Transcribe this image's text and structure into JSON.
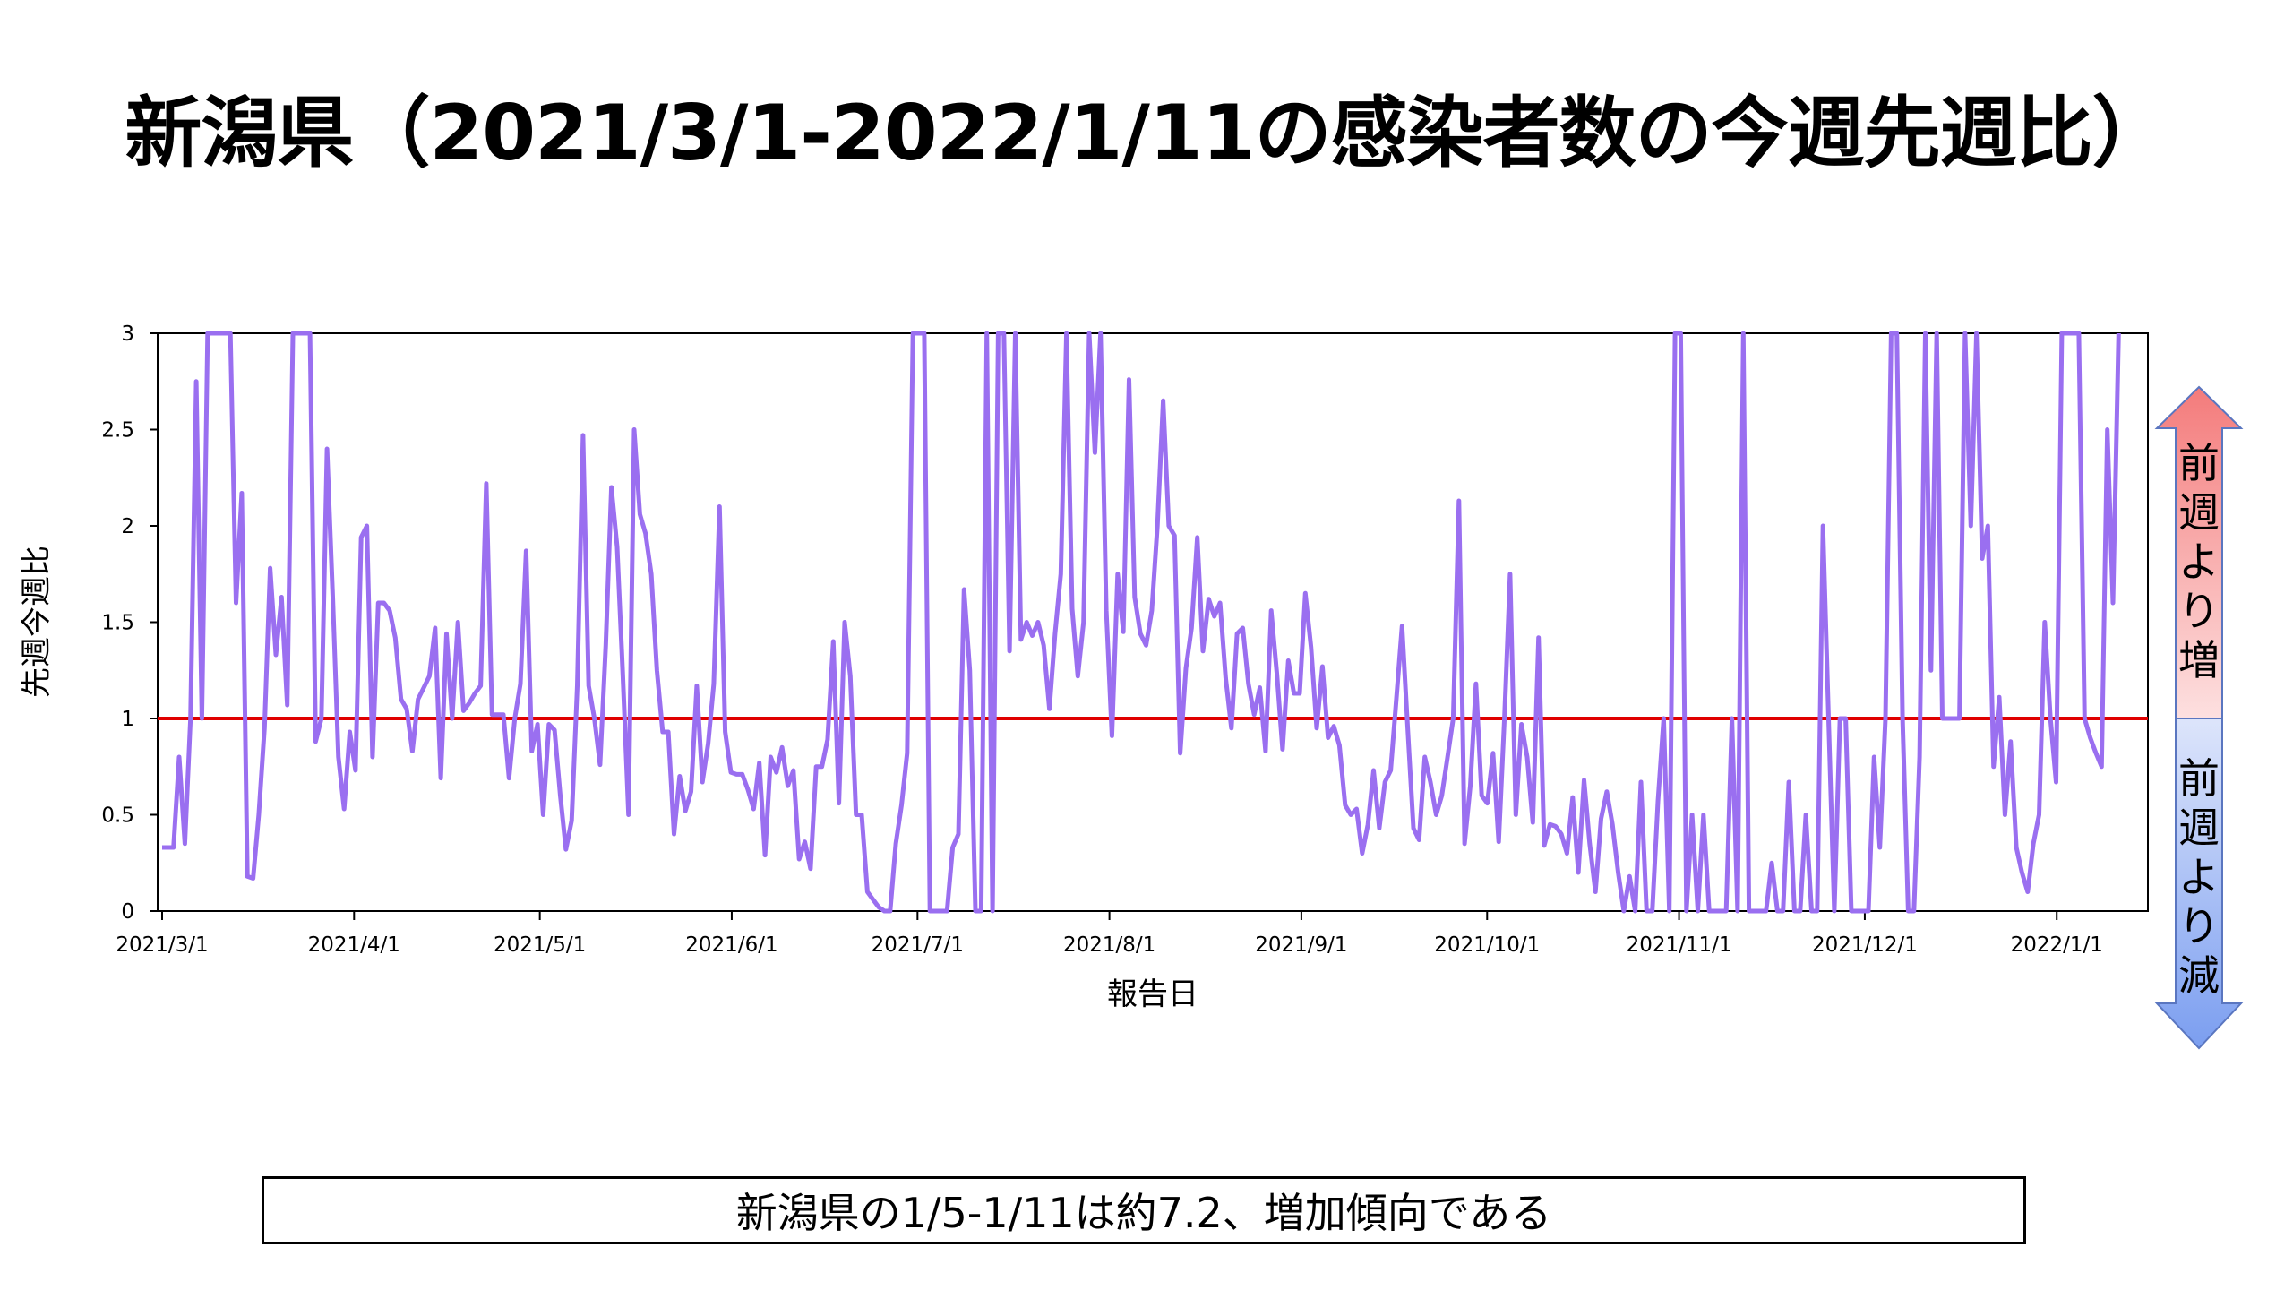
{
  "title": "新潟県（2021/3/1-2022/1/11の感染者数の今週先週比）",
  "summary": "新潟県の1/5-1/11は約7.2、増加傾向である",
  "arrow": {
    "up_label": "前週より増",
    "down_label": "前週より減",
    "up_color": "#f47b7b",
    "down_color": "#7b9ef0"
  },
  "chart_data": {
    "type": "line",
    "title": "",
    "xlabel": "報告日",
    "ylabel": "先週今週比",
    "ylim": [
      0,
      3
    ],
    "yticks": [
      "0",
      "0.5",
      "1",
      "1.5",
      "2",
      "2.5",
      "3"
    ],
    "xticks": [
      "2021/3/1",
      "2021/4/1",
      "2021/5/1",
      "2021/6/1",
      "2021/7/1",
      "2021/8/1",
      "2021/9/1",
      "2021/10/1",
      "2021/11/1",
      "2021/12/1",
      "2022/1/1"
    ],
    "x_start": "2021/3/1",
    "reference_line": {
      "y": 1,
      "color": "#e00000"
    },
    "series_color": "#9a6ff0",
    "series": [
      {
        "values": [
          0.33,
          0.33,
          0.33,
          0.8,
          0.35,
          1.0,
          2.75,
          1.0,
          3.0,
          3.0,
          3.0,
          3.0,
          3.0,
          1.6,
          2.17,
          0.18,
          0.17,
          0.5,
          0.95,
          1.78,
          1.33,
          1.63,
          1.07,
          3.0,
          3.0,
          3.0,
          3.0,
          0.88,
          1.0,
          2.4,
          1.63,
          0.8,
          0.53,
          0.93,
          0.73,
          1.94,
          2.0,
          0.8,
          1.6,
          1.6,
          1.56,
          1.42,
          1.1,
          1.05,
          0.83,
          1.1,
          1.16,
          1.22,
          1.47,
          0.69,
          1.44,
          1.0,
          1.5,
          1.04,
          1.08,
          1.13,
          1.17,
          2.22,
          1.02,
          1.02,
          1.02,
          0.69,
          1.0,
          1.18,
          1.87,
          0.83,
          0.97,
          0.5,
          0.97,
          0.94,
          0.6,
          0.32,
          0.47,
          1.17,
          2.47,
          1.17,
          1.0,
          0.76,
          1.38,
          2.2,
          1.89,
          1.23,
          0.5,
          2.5,
          2.06,
          1.96,
          1.75,
          1.25,
          0.93,
          0.93,
          0.4,
          0.7,
          0.52,
          0.62,
          1.17,
          0.67,
          0.87,
          1.18,
          2.1,
          0.93,
          0.72,
          0.71,
          0.71,
          0.63,
          0.53,
          0.77,
          0.29,
          0.8,
          0.72,
          0.85,
          0.65,
          0.73,
          0.27,
          0.36,
          0.22,
          0.75,
          0.75,
          0.89,
          1.4,
          0.56,
          1.5,
          1.22,
          0.5,
          0.5,
          0.1,
          0.06,
          0.02,
          0.0,
          0.0,
          0.35,
          0.55,
          0.82,
          3.0,
          3.0,
          3.0,
          0.0,
          0.0,
          0.0,
          0.0,
          0.33,
          0.4,
          1.67,
          1.25,
          0.0,
          0.0,
          3.0,
          0.0,
          3.0,
          3.0,
          1.35,
          3.0,
          1.41,
          1.5,
          1.43,
          1.5,
          1.38,
          1.05,
          1.44,
          1.75,
          3.0,
          1.57,
          1.22,
          1.5,
          3.0,
          2.38,
          3.0,
          1.56,
          0.91,
          1.75,
          1.45,
          2.76,
          1.63,
          1.44,
          1.38,
          1.56,
          2.0,
          2.65,
          2.0,
          1.95,
          0.82,
          1.26,
          1.47,
          1.94,
          1.35,
          1.62,
          1.53,
          1.6,
          1.21,
          0.95,
          1.44,
          1.47,
          1.18,
          1.02,
          1.16,
          0.83,
          1.56,
          1.23,
          0.84,
          1.3,
          1.13,
          1.13,
          1.65,
          1.37,
          0.95,
          1.27,
          0.9,
          0.96,
          0.86,
          0.55,
          0.5,
          0.53,
          0.3,
          0.45,
          0.73,
          0.43,
          0.67,
          0.73,
          1.1,
          1.48,
          0.95,
          0.43,
          0.37,
          0.8,
          0.67,
          0.5,
          0.6,
          0.8,
          1.0,
          2.13,
          0.35,
          0.65,
          1.18,
          0.6,
          0.56,
          0.82,
          0.36,
          1.0,
          1.75,
          0.5,
          0.97,
          0.8,
          0.46,
          1.42,
          0.34,
          0.45,
          0.44,
          0.4,
          0.3,
          0.59,
          0.2,
          0.68,
          0.35,
          0.1,
          0.48,
          0.62,
          0.45,
          0.2,
          0.0,
          0.18,
          0.0,
          0.67,
          0.0,
          0.0,
          0.57,
          1.0,
          0.0,
          3.0,
          3.0,
          0.0,
          0.5,
          0.0,
          0.5,
          0.0,
          0.0,
          0.0,
          0.0,
          1.0,
          0.0,
          3.0,
          0.0,
          0.0,
          0.0,
          0.0,
          0.25,
          0.0,
          0.0,
          0.67,
          0.0,
          0.0,
          0.5,
          0.0,
          0.0,
          2.0,
          1.0,
          0.0,
          1.0,
          1.0,
          0.0,
          0.0,
          0.0,
          0.0,
          0.8,
          0.33,
          1.0,
          3.0,
          3.0,
          1.0,
          0.0,
          0.0,
          0.8,
          3.0,
          1.25,
          3.0,
          1.0,
          1.0,
          1.0,
          1.0,
          3.0,
          2.0,
          3.0,
          1.83,
          2.0,
          0.75,
          1.11,
          0.5,
          0.88,
          0.33,
          0.2,
          0.1,
          0.35,
          0.5,
          1.5,
          1.0,
          0.67,
          3.0,
          3.0,
          3.0,
          3.0,
          1.0,
          0.9,
          0.82,
          0.75,
          2.5,
          1.6,
          3.0
        ]
      }
    ]
  }
}
